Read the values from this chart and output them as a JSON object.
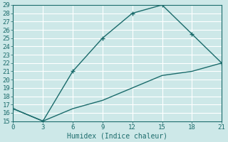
{
  "xlabel": "Humidex (Indice chaleur)",
  "bg_color": "#cde8e8",
  "grid_color": "#b0d0d0",
  "line_color": "#1a6b6b",
  "xlim": [
    0,
    21
  ],
  "ylim": [
    15,
    29
  ],
  "xticks": [
    0,
    3,
    6,
    9,
    12,
    15,
    18,
    21
  ],
  "yticks": [
    15,
    16,
    17,
    18,
    19,
    20,
    21,
    22,
    23,
    24,
    25,
    26,
    27,
    28,
    29
  ],
  "line1_x": [
    0,
    3,
    6,
    9,
    12,
    15,
    18,
    21
  ],
  "line1_y": [
    16.5,
    15,
    21,
    25,
    28,
    29,
    25.5,
    22
  ],
  "line2_x": [
    0,
    3,
    6,
    9,
    12,
    15,
    18,
    21
  ],
  "line2_y": [
    16.5,
    15,
    16.5,
    17.5,
    19,
    20.5,
    21,
    22
  ],
  "spine_color": "#1a6b6b",
  "tick_color": "#1a6b6b",
  "label_fontsize": 6.5,
  "xlabel_fontsize": 7
}
